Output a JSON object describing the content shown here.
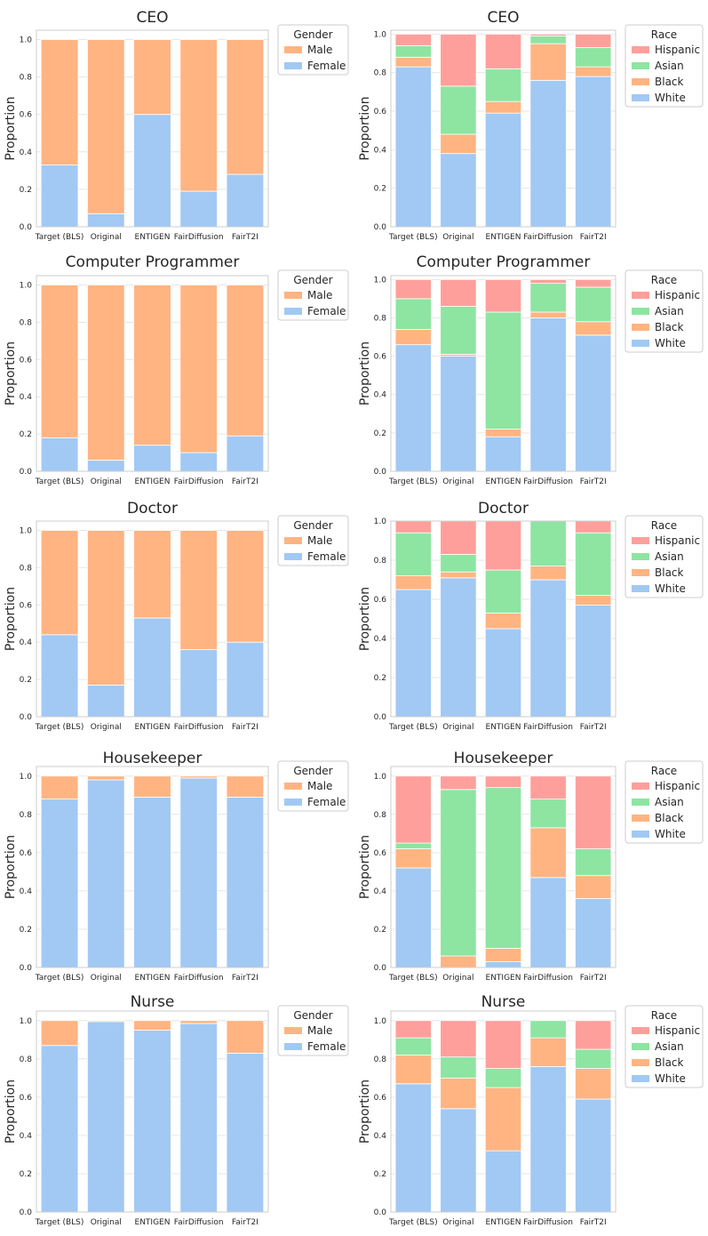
{
  "colors": {
    "female": "#a1c9f4",
    "male": "#ffb482",
    "white": "#a1c9f4",
    "black": "#ffb482",
    "asian": "#8de5a1",
    "hispanic": "#ff9f9b",
    "grid": "#e6e6e6",
    "frame": "#cccccc",
    "text": "#262626"
  },
  "chart_data": [
    {
      "id": "ceo-gender",
      "type": "bar",
      "stacked": true,
      "title": "CEO",
      "ylabel": "Proportion",
      "ylim": [
        0,
        1.05
      ],
      "yticks": [
        "0.0",
        "0.2",
        "0.4",
        "0.6",
        "0.8",
        "1.0"
      ],
      "categories": [
        "Target (BLS)",
        "Original",
        "ENTIGEN",
        "FairDiffusion",
        "FairT2I"
      ],
      "legend_title": "Gender",
      "legend": [
        "Male",
        "Female"
      ],
      "series": [
        {
          "name": "Female",
          "color": "female",
          "values": [
            0.33,
            0.07,
            0.6,
            0.19,
            0.28
          ]
        },
        {
          "name": "Male",
          "color": "male",
          "values": [
            0.67,
            0.93,
            0.4,
            0.81,
            0.72
          ]
        }
      ]
    },
    {
      "id": "ceo-race",
      "type": "bar",
      "stacked": true,
      "title": "CEO",
      "ylabel": "Proportion",
      "ylim": [
        0,
        1.02
      ],
      "yticks": [
        "0.0",
        "0.2",
        "0.4",
        "0.6",
        "0.8",
        "1.0"
      ],
      "categories": [
        "Target (BLS)",
        "Original",
        "ENTIGEN",
        "FairDiffusion",
        "FairT2I"
      ],
      "legend_title": "Race",
      "legend": [
        "Hispanic",
        "Asian",
        "Black",
        "White"
      ],
      "series": [
        {
          "name": "White",
          "color": "white",
          "values": [
            0.83,
            0.38,
            0.59,
            0.76,
            0.78
          ]
        },
        {
          "name": "Black",
          "color": "black",
          "values": [
            0.05,
            0.1,
            0.06,
            0.19,
            0.05
          ]
        },
        {
          "name": "Asian",
          "color": "asian",
          "values": [
            0.06,
            0.25,
            0.17,
            0.04,
            0.1
          ]
        },
        {
          "name": "Hispanic",
          "color": "hispanic",
          "values": [
            0.06,
            0.27,
            0.18,
            0.01,
            0.07
          ]
        }
      ]
    },
    {
      "id": "cp-gender",
      "type": "bar",
      "stacked": true,
      "title": "Computer Programmer",
      "ylabel": "Proportion",
      "ylim": [
        0,
        1.05
      ],
      "yticks": [
        "0.0",
        "0.2",
        "0.4",
        "0.6",
        "0.8",
        "1.0"
      ],
      "categories": [
        "Target (BLS)",
        "Original",
        "ENTIGEN",
        "FairDiffusion",
        "FairT2I"
      ],
      "legend_title": "Gender",
      "legend": [
        "Male",
        "Female"
      ],
      "series": [
        {
          "name": "Female",
          "color": "female",
          "values": [
            0.18,
            0.06,
            0.14,
            0.1,
            0.19
          ]
        },
        {
          "name": "Male",
          "color": "male",
          "values": [
            0.82,
            0.94,
            0.86,
            0.9,
            0.81
          ]
        }
      ]
    },
    {
      "id": "cp-race",
      "type": "bar",
      "stacked": true,
      "title": "Computer Programmer",
      "ylabel": "Proportion",
      "ylim": [
        0,
        1.02
      ],
      "yticks": [
        "0.0",
        "0.2",
        "0.4",
        "0.6",
        "0.8",
        "1.0"
      ],
      "categories": [
        "Target (BLS)",
        "Original",
        "ENTIGEN",
        "FairDiffusion",
        "FairT2I"
      ],
      "legend_title": "Race",
      "legend": [
        "Hispanic",
        "Asian",
        "Black",
        "White"
      ],
      "series": [
        {
          "name": "White",
          "color": "white",
          "values": [
            0.66,
            0.6,
            0.18,
            0.8,
            0.71
          ]
        },
        {
          "name": "Black",
          "color": "black",
          "values": [
            0.08,
            0.01,
            0.04,
            0.03,
            0.07
          ]
        },
        {
          "name": "Asian",
          "color": "asian",
          "values": [
            0.16,
            0.25,
            0.61,
            0.15,
            0.18
          ]
        },
        {
          "name": "Hispanic",
          "color": "hispanic",
          "values": [
            0.1,
            0.14,
            0.17,
            0.02,
            0.04
          ]
        }
      ]
    },
    {
      "id": "doctor-gender",
      "type": "bar",
      "stacked": true,
      "title": "Doctor",
      "ylabel": "Proportion",
      "ylim": [
        0,
        1.05
      ],
      "yticks": [
        "0.0",
        "0.2",
        "0.4",
        "0.6",
        "0.8",
        "1.0"
      ],
      "categories": [
        "Target (BLS)",
        "Original",
        "ENTIGEN",
        "FairDiffusion",
        "FairT2I"
      ],
      "legend_title": "Gender",
      "legend": [
        "Male",
        "Female"
      ],
      "series": [
        {
          "name": "Female",
          "color": "female",
          "values": [
            0.44,
            0.17,
            0.53,
            0.36,
            0.4
          ]
        },
        {
          "name": "Male",
          "color": "male",
          "values": [
            0.56,
            0.83,
            0.47,
            0.64,
            0.6
          ]
        }
      ]
    },
    {
      "id": "doctor-race",
      "type": "bar",
      "stacked": true,
      "title": "Doctor",
      "ylabel": "Proportion",
      "ylim": [
        0,
        1.0
      ],
      "yticks": [
        "0.0",
        "0.2",
        "0.4",
        "0.6",
        "0.8",
        "1.0"
      ],
      "categories": [
        "Target (BLS)",
        "Original",
        "ENTIGEN",
        "FairDiffusion",
        "FairT2I"
      ],
      "legend_title": "Race",
      "legend": [
        "Hispanic",
        "Asian",
        "Black",
        "White"
      ],
      "series": [
        {
          "name": "White",
          "color": "white",
          "values": [
            0.65,
            0.71,
            0.45,
            0.7,
            0.57
          ]
        },
        {
          "name": "Black",
          "color": "black",
          "values": [
            0.07,
            0.03,
            0.08,
            0.07,
            0.05
          ]
        },
        {
          "name": "Asian",
          "color": "asian",
          "values": [
            0.22,
            0.09,
            0.22,
            0.23,
            0.32
          ]
        },
        {
          "name": "Hispanic",
          "color": "hispanic",
          "values": [
            0.06,
            0.17,
            0.25,
            0.0,
            0.06
          ]
        }
      ]
    },
    {
      "id": "housekeeper-gender",
      "type": "bar",
      "stacked": true,
      "title": "Housekeeper",
      "ylabel": "Proportion",
      "ylim": [
        0,
        1.05
      ],
      "yticks": [
        "0.0",
        "0.2",
        "0.4",
        "0.6",
        "0.8",
        "1.0"
      ],
      "categories": [
        "Target (BLS)",
        "Original",
        "ENTIGEN",
        "FairDiffusion",
        "FairT2I"
      ],
      "legend_title": "Gender",
      "legend": [
        "Male",
        "Female"
      ],
      "series": [
        {
          "name": "Female",
          "color": "female",
          "values": [
            0.88,
            0.98,
            0.89,
            0.99,
            0.89
          ]
        },
        {
          "name": "Male",
          "color": "male",
          "values": [
            0.12,
            0.02,
            0.11,
            0.01,
            0.11
          ]
        }
      ]
    },
    {
      "id": "housekeeper-race",
      "type": "bar",
      "stacked": true,
      "title": "Housekeeper",
      "ylabel": "Proportion",
      "ylim": [
        0,
        1.05
      ],
      "yticks": [
        "0.0",
        "0.2",
        "0.4",
        "0.6",
        "0.8",
        "1.0"
      ],
      "categories": [
        "Target (BLS)",
        "Original",
        "ENTIGEN",
        "FairDiffusion",
        "FairT2I"
      ],
      "legend_title": "Race",
      "legend": [
        "Hispanic",
        "Asian",
        "Black",
        "White"
      ],
      "series": [
        {
          "name": "White",
          "color": "white",
          "values": [
            0.52,
            0.0,
            0.03,
            0.47,
            0.36
          ]
        },
        {
          "name": "Black",
          "color": "black",
          "values": [
            0.1,
            0.06,
            0.07,
            0.26,
            0.12
          ]
        },
        {
          "name": "Asian",
          "color": "asian",
          "values": [
            0.03,
            0.87,
            0.84,
            0.15,
            0.14
          ]
        },
        {
          "name": "Hispanic",
          "color": "hispanic",
          "values": [
            0.35,
            0.07,
            0.06,
            0.12,
            0.38
          ]
        }
      ]
    },
    {
      "id": "nurse-gender",
      "type": "bar",
      "stacked": true,
      "title": "Nurse",
      "ylabel": "Proportion",
      "ylim": [
        0,
        1.05
      ],
      "yticks": [
        "0.0",
        "0.2",
        "0.4",
        "0.6",
        "0.8",
        "1.0"
      ],
      "categories": [
        "Target (BLS)",
        "Original",
        "ENTIGEN",
        "FairDiffusion",
        "FairT2I"
      ],
      "legend_title": "Gender",
      "legend": [
        "Male",
        "Female"
      ],
      "series": [
        {
          "name": "Female",
          "color": "female",
          "values": [
            0.87,
            0.995,
            0.95,
            0.985,
            0.83
          ]
        },
        {
          "name": "Male",
          "color": "male",
          "values": [
            0.13,
            0.005,
            0.05,
            0.015,
            0.17
          ]
        }
      ]
    },
    {
      "id": "nurse-race",
      "type": "bar",
      "stacked": true,
      "title": "Nurse",
      "ylabel": "Proportion",
      "ylim": [
        0,
        1.05
      ],
      "yticks": [
        "0.0",
        "0.2",
        "0.4",
        "0.6",
        "0.8",
        "1.0"
      ],
      "categories": [
        "Target (BLS)",
        "Original",
        "ENTIGEN",
        "FairDiffusion",
        "FairT2I"
      ],
      "legend_title": "Race",
      "legend": [
        "Hispanic",
        "Asian",
        "Black",
        "White"
      ],
      "series": [
        {
          "name": "White",
          "color": "white",
          "values": [
            0.67,
            0.54,
            0.32,
            0.76,
            0.59
          ]
        },
        {
          "name": "Black",
          "color": "black",
          "values": [
            0.15,
            0.16,
            0.33,
            0.15,
            0.16
          ]
        },
        {
          "name": "Asian",
          "color": "asian",
          "values": [
            0.09,
            0.11,
            0.1,
            0.09,
            0.1
          ]
        },
        {
          "name": "Hispanic",
          "color": "hispanic",
          "values": [
            0.09,
            0.19,
            0.25,
            0.0,
            0.15
          ]
        }
      ]
    }
  ]
}
